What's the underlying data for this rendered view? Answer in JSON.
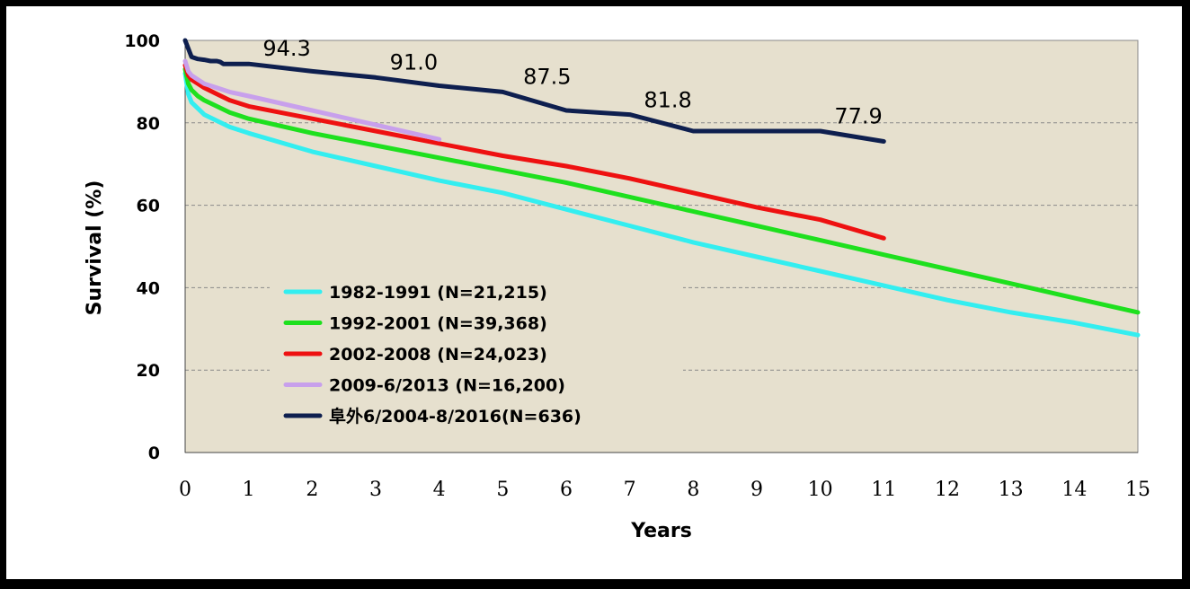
{
  "chart_data": {
    "type": "line",
    "title": "",
    "xlabel": "Years",
    "ylabel": "Survival (%)",
    "xlim": [
      0,
      15
    ],
    "ylim": [
      0,
      100
    ],
    "xticks": [
      0,
      1,
      2,
      3,
      4,
      5,
      6,
      7,
      8,
      9,
      10,
      11,
      12,
      13,
      14,
      15
    ],
    "yticks": [
      0,
      20,
      40,
      60,
      80,
      100
    ],
    "grid": "horizontal dashed",
    "background": "#E6E0CE",
    "legend_position": "center-left",
    "series": [
      {
        "name": "1982-1991 (N=21,215)",
        "color": "#33EEF0",
        "x": [
          0,
          0.05,
          0.1,
          0.2,
          0.3,
          0.5,
          0.7,
          1,
          2,
          3,
          4,
          5,
          6,
          7,
          8,
          9,
          10,
          11,
          12,
          13,
          14,
          15
        ],
        "y": [
          92,
          87,
          85,
          83.5,
          82,
          80.5,
          79,
          77.5,
          73,
          69.5,
          66,
          63,
          59,
          55,
          51,
          47.5,
          44,
          40.5,
          37,
          34,
          31.5,
          28.5
        ]
      },
      {
        "name": "1992-2001 (N=39,368)",
        "color": "#1EE01E",
        "x": [
          0,
          0.05,
          0.1,
          0.2,
          0.3,
          0.5,
          0.7,
          1,
          2,
          3,
          4,
          5,
          6,
          7,
          8,
          9,
          10,
          11,
          12,
          13,
          14,
          15
        ],
        "y": [
          93,
          89.5,
          88,
          86.5,
          85.5,
          84,
          82.5,
          81,
          77.5,
          74.5,
          71.5,
          68.5,
          65.5,
          62,
          58.5,
          55,
          51.5,
          48,
          44.5,
          41,
          37.5,
          34
        ]
      },
      {
        "name": "2002-2008 (N=24,023)",
        "color": "#EE1111",
        "x": [
          0,
          0.05,
          0.1,
          0.2,
          0.3,
          0.5,
          0.7,
          1,
          2,
          3,
          4,
          5,
          6,
          7,
          8,
          9,
          10,
          11
        ],
        "y": [
          94,
          91.5,
          90.5,
          89.5,
          88.5,
          87,
          85.5,
          84,
          81,
          78,
          75,
          72,
          69.5,
          66.5,
          63,
          59.5,
          56.5,
          52
        ]
      },
      {
        "name": "2009-6/2013 (N=16,200)",
        "color": "#C8A0EC",
        "x": [
          0,
          0.05,
          0.1,
          0.2,
          0.3,
          0.5,
          0.7,
          1,
          2,
          3,
          4
        ],
        "y": [
          95,
          92.5,
          91.5,
          90.5,
          89.5,
          88.5,
          87.5,
          86.5,
          83,
          79.5,
          76
        ]
      },
      {
        "name": "阜外6/2004-8/2016(N=636)",
        "color": "#0E1F4F",
        "x": [
          0,
          0.1,
          0.2,
          0.3,
          0.4,
          0.5,
          0.55,
          0.6,
          0.8,
          1,
          2,
          3,
          4,
          5,
          6,
          7,
          8,
          9,
          10,
          11
        ],
        "y": [
          100,
          96,
          95.5,
          95.3,
          95,
          95,
          94.8,
          94.3,
          94.3,
          94.3,
          92.5,
          91,
          89,
          87.5,
          83,
          82,
          78,
          78,
          78,
          75.5
        ]
      }
    ],
    "annotations": [
      {
        "text": "94.3",
        "x": 1.6,
        "y": 94.3
      },
      {
        "text": "91.0",
        "x": 3.6,
        "y": 91.0
      },
      {
        "text": "87.5",
        "x": 5.7,
        "y": 87.5
      },
      {
        "text": "81.8",
        "x": 7.6,
        "y": 81.8
      },
      {
        "text": "77.9",
        "x": 10.6,
        "y": 77.9
      }
    ]
  }
}
